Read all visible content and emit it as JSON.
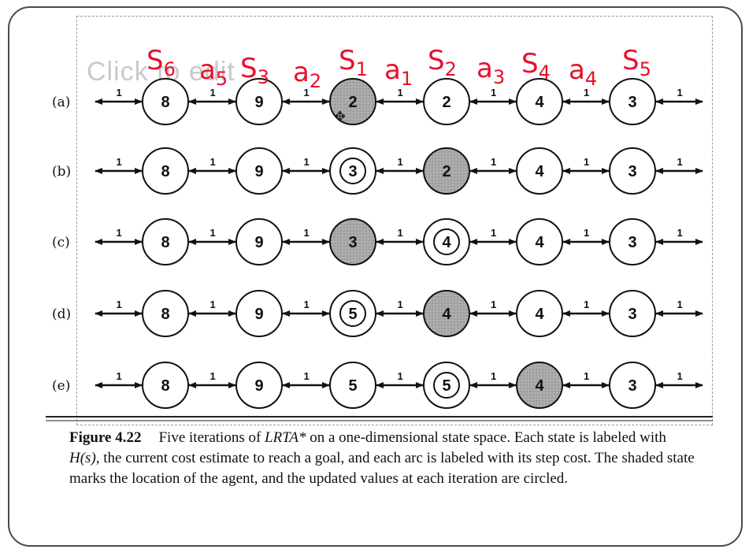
{
  "slide_title_ghost": "Click to edit",
  "annotations": [
    "S6",
    "a5",
    "S3",
    "a2",
    "S1",
    "a1",
    "S2",
    "a3",
    "S4",
    "a4",
    "S5"
  ],
  "rows": [
    {
      "label": "(a)",
      "nodes": [
        {
          "value": "8"
        },
        {
          "value": "9"
        },
        {
          "value": "2",
          "agent": true
        },
        {
          "value": "2"
        },
        {
          "value": "4"
        },
        {
          "value": "3"
        }
      ]
    },
    {
      "label": "(b)",
      "nodes": [
        {
          "value": "8"
        },
        {
          "value": "9"
        },
        {
          "value": "3",
          "updated": true
        },
        {
          "value": "2",
          "agent": true
        },
        {
          "value": "4"
        },
        {
          "value": "3"
        }
      ]
    },
    {
      "label": "(c)",
      "nodes": [
        {
          "value": "8"
        },
        {
          "value": "9"
        },
        {
          "value": "3",
          "agent": true
        },
        {
          "value": "4",
          "updated": true
        },
        {
          "value": "4"
        },
        {
          "value": "3"
        }
      ]
    },
    {
      "label": "(d)",
      "nodes": [
        {
          "value": "8"
        },
        {
          "value": "9"
        },
        {
          "value": "5",
          "updated": true
        },
        {
          "value": "4",
          "agent": true
        },
        {
          "value": "4"
        },
        {
          "value": "3"
        }
      ]
    },
    {
      "label": "(e)",
      "nodes": [
        {
          "value": "8"
        },
        {
          "value": "9"
        },
        {
          "value": "5"
        },
        {
          "value": "5",
          "updated": true
        },
        {
          "value": "4",
          "agent": true
        },
        {
          "value": "3"
        }
      ]
    }
  ],
  "arc_cost": "1",
  "caption": {
    "fig_label": "Figure 4.22",
    "text_1": "Five iterations of ",
    "algo": "LRTA*",
    "text_2": " on a one-dimensional state space. Each state is labeled with ",
    "hs": "H(s)",
    "text_3": ", the current cost estimate to reach a goal, and each arc is labeled with its step cost. The shaded state marks the location of the agent, and the updated values at each iteration are circled."
  },
  "colors": {
    "annotation": "#e8102a",
    "agent_fill": "#a9a9a9",
    "stroke": "#111111"
  }
}
